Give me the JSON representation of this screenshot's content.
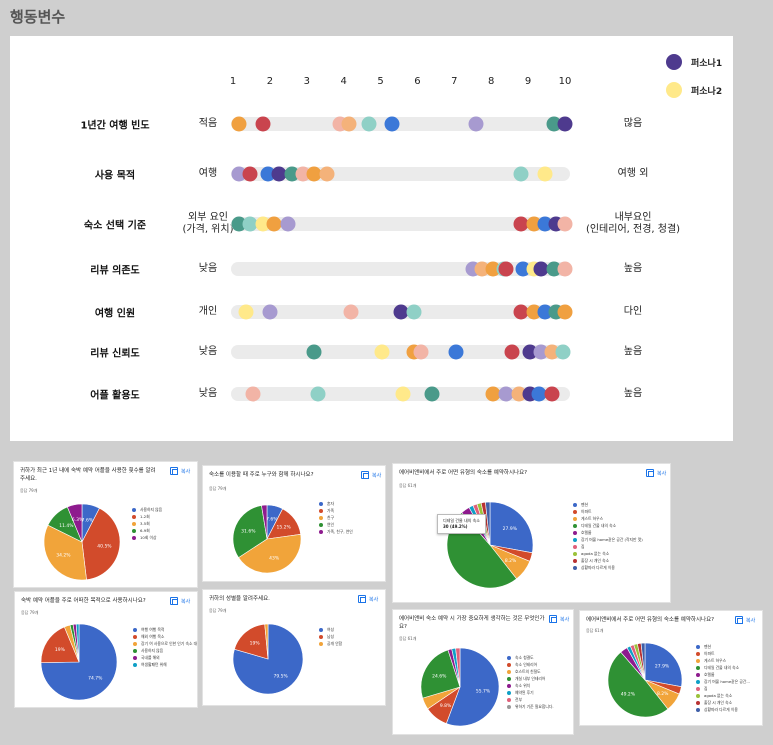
{
  "page_title": "행동변수",
  "legend": [
    {
      "label": "퍼소나1",
      "color": "#4e3a8e"
    },
    {
      "label": "퍼소나2",
      "color": "#ffe98a"
    }
  ],
  "scale": [
    "1",
    "2",
    "3",
    "4",
    "5",
    "6",
    "7",
    "8",
    "9",
    "10"
  ],
  "rows": [
    {
      "label": "1년간 여행 빈도",
      "left": "적음",
      "right": "많음",
      "dots": [
        {
          "v": 1.15,
          "c": "#f0a040"
        },
        {
          "v": 1.8,
          "c": "#c9444e"
        },
        {
          "v": 3.9,
          "c": "#f2b4a6"
        },
        {
          "v": 4.15,
          "c": "#f4b27a"
        },
        {
          "v": 4.7,
          "c": "#8fd0c6"
        },
        {
          "v": 5.3,
          "c": "#3b78d8"
        },
        {
          "v": 7.6,
          "c": "#a79ad0"
        },
        {
          "v": 9.7,
          "c": "#4a9a8a"
        },
        {
          "v": 10,
          "c": "#4e3a8e"
        }
      ]
    },
    {
      "label": "사용 목적",
      "left": "여행",
      "right": "여행 외",
      "dots": [
        {
          "v": 1.15,
          "c": "#a79ad0"
        },
        {
          "v": 1.45,
          "c": "#c9444e"
        },
        {
          "v": 1.95,
          "c": "#3b78d8"
        },
        {
          "v": 2.25,
          "c": "#4e3a8e"
        },
        {
          "v": 2.6,
          "c": "#4a9a8a"
        },
        {
          "v": 2.9,
          "c": "#f2b4a6"
        },
        {
          "v": 3.2,
          "c": "#f0a040"
        },
        {
          "v": 3.55,
          "c": "#f4b27a"
        },
        {
          "v": 8.8,
          "c": "#8fd0c6"
        },
        {
          "v": 9.45,
          "c": "#ffe98a"
        }
      ]
    },
    {
      "label": "숙소 선택 기준",
      "left": "외부 요인\n(가격, 위치)",
      "right": "내부요인\n(인테리어, 전경, 청결)",
      "dots": [
        {
          "v": 1.15,
          "c": "#4a9a8a"
        },
        {
          "v": 1.45,
          "c": "#8fd0c6"
        },
        {
          "v": 1.8,
          "c": "#ffe98a"
        },
        {
          "v": 2.1,
          "c": "#f0a040"
        },
        {
          "v": 2.5,
          "c": "#a79ad0"
        },
        {
          "v": 8.8,
          "c": "#c9444e"
        },
        {
          "v": 9.15,
          "c": "#f0a040"
        },
        {
          "v": 9.45,
          "c": "#3b78d8"
        },
        {
          "v": 9.75,
          "c": "#4e3a8e"
        },
        {
          "v": 10,
          "c": "#f2b4a6"
        }
      ]
    },
    {
      "label": "리뷰 의존도",
      "left": "낮음",
      "right": "높음",
      "dots": [
        {
          "v": 7.5,
          "c": "#a79ad0"
        },
        {
          "v": 7.75,
          "c": "#f4b27a"
        },
        {
          "v": 8.05,
          "c": "#f0a040"
        },
        {
          "v": 8.35,
          "c": "#8fd0c6"
        },
        {
          "v": 8.4,
          "c": "#c9444e"
        },
        {
          "v": 8.85,
          "c": "#3b78d8"
        },
        {
          "v": 9.15,
          "c": "#ffe98a"
        },
        {
          "v": 9.35,
          "c": "#4e3a8e"
        },
        {
          "v": 9.7,
          "c": "#4a9a8a"
        },
        {
          "v": 10,
          "c": "#f2b4a6"
        }
      ]
    },
    {
      "label": "여행 인원",
      "left": "개인",
      "right": "다인",
      "dots": [
        {
          "v": 1.35,
          "c": "#ffe98a"
        },
        {
          "v": 2,
          "c": "#a79ad0"
        },
        {
          "v": 4.2,
          "c": "#f2b4a6"
        },
        {
          "v": 5.55,
          "c": "#4e3a8e"
        },
        {
          "v": 5.9,
          "c": "#8fd0c6"
        },
        {
          "v": 8.8,
          "c": "#c9444e"
        },
        {
          "v": 9.15,
          "c": "#f0a040"
        },
        {
          "v": 9.45,
          "c": "#3b78d8"
        },
        {
          "v": 9.75,
          "c": "#4a9a8a"
        },
        {
          "v": 10,
          "c": "#f0a040"
        }
      ]
    },
    {
      "label": "리뷰 신뢰도",
      "left": "낮음",
      "right": "높음",
      "dots": [
        {
          "v": 3.2,
          "c": "#4a9a8a"
        },
        {
          "v": 5.05,
          "c": "#ffe98a"
        },
        {
          "v": 5.9,
          "c": "#f0a040"
        },
        {
          "v": 6.1,
          "c": "#f2b4a6"
        },
        {
          "v": 7.05,
          "c": "#3b78d8"
        },
        {
          "v": 8.55,
          "c": "#c9444e"
        },
        {
          "v": 9.05,
          "c": "#4e3a8e"
        },
        {
          "v": 9.35,
          "c": "#a79ad0"
        },
        {
          "v": 9.65,
          "c": "#f4b27a"
        },
        {
          "v": 9.95,
          "c": "#8fd0c6"
        }
      ]
    },
    {
      "label": "어플 활용도",
      "left": "낮음",
      "right": "높음",
      "dots": [
        {
          "v": 1.55,
          "c": "#f2b4a6"
        },
        {
          "v": 3.3,
          "c": "#8fd0c6"
        },
        {
          "v": 5.6,
          "c": "#ffe98a"
        },
        {
          "v": 6.4,
          "c": "#4a9a8a"
        },
        {
          "v": 8.05,
          "c": "#f0a040"
        },
        {
          "v": 8.4,
          "c": "#a79ad0"
        },
        {
          "v": 8.75,
          "c": "#f4b27a"
        },
        {
          "v": 9.05,
          "c": "#4e3a8e"
        },
        {
          "v": 9.3,
          "c": "#3b78d8"
        },
        {
          "v": 9.65,
          "c": "#c9444e"
        }
      ]
    }
  ],
  "cards": [
    {
      "question": "귀하가 최근 1년 내에 숙박 예약 어플을 사용한 횟수를 알려주세요.",
      "count": "응답 79개",
      "copy": "복사",
      "slices": [
        {
          "v": 7.6,
          "c": "#3c68c8",
          "label": "7.6%"
        },
        {
          "v": 40.5,
          "c": "#d24b2b",
          "label": "40.5%"
        },
        {
          "v": 34.2,
          "c": "#f1a43a",
          "label": "34.2%"
        },
        {
          "v": 11.4,
          "c": "#2f9134",
          "label": "11.4%"
        },
        {
          "v": 6.3,
          "c": "#8e1b8e",
          "label": "6.3%"
        }
      ],
      "legend": [
        "사용하지 않음",
        "1-2회",
        "3-5회",
        "6-9회",
        "10회 이상"
      ]
    },
    {
      "question": "숙소를 이용할 때 주로 누구와 함께 하시나요?",
      "count": "응답 79개",
      "copy": "복사",
      "slices": [
        {
          "v": 7.6,
          "c": "#3c68c8",
          "label": "7.6%"
        },
        {
          "v": 15.2,
          "c": "#d24b2b",
          "label": "15.2%"
        },
        {
          "v": 43,
          "c": "#f1a43a",
          "label": "43%"
        },
        {
          "v": 31.6,
          "c": "#2f9134",
          "label": "31.6%"
        },
        {
          "v": 2.6,
          "c": "#8e1b8e",
          "label": ""
        }
      ],
      "legend": [
        "혼자",
        "가족",
        "친구",
        "연인",
        "가족, 친구, 연인"
      ]
    },
    {
      "question": "에어비앤비에서 주로 어떤 유형의 숙소를 예약하시나요?",
      "count": "응답 61개",
      "copy": "복사",
      "slices": [
        {
          "v": 27.9,
          "c": "#3c68c8",
          "label": "27.9%"
        },
        {
          "v": 3.3,
          "c": "#d24b2b",
          "label": ""
        },
        {
          "v": 8.2,
          "c": "#f1a43a",
          "label": "8.2%"
        },
        {
          "v": 49.2,
          "c": "#2f9134",
          "label": ""
        },
        {
          "v": 3.3,
          "c": "#8e1b8e",
          "label": ""
        },
        {
          "v": 1.6,
          "c": "#0f9fc6",
          "label": ""
        },
        {
          "v": 1.6,
          "c": "#e0607a",
          "label": ""
        },
        {
          "v": 1.6,
          "c": "#9bc23a",
          "label": ""
        },
        {
          "v": 1.6,
          "c": "#b83232",
          "label": ""
        },
        {
          "v": 1.7,
          "c": "#3f5fa8",
          "label": ""
        }
      ],
      "legend": [
        "펜션",
        "아파트",
        "게스트 하우스",
        "디테일 건물 내의 숙소",
        "호텔룸",
        "장기 머물 home같은 공간 (작지만 멋)",
        "집",
        "agoda 없는 숙소",
        "출장 시 개인 숙소",
        "상황따라 다르게 이용"
      ],
      "tooltip": [
        "디테일 건물 내의 숙소",
        "30 (49.2%)"
      ]
    },
    {
      "question": "숙박 예약 어플을 주로 어떠한 목적으로 사용하시나요?",
      "count": "응답 79개",
      "copy": "복사",
      "slices": [
        {
          "v": 74.7,
          "c": "#3c68c8",
          "label": "74.7%"
        },
        {
          "v": 19,
          "c": "#d24b2b",
          "label": "19%"
        },
        {
          "v": 2.5,
          "c": "#f1a43a",
          "label": ""
        },
        {
          "v": 1.3,
          "c": "#2f9134",
          "label": ""
        },
        {
          "v": 1.3,
          "c": "#8e1b8e",
          "label": ""
        },
        {
          "v": 1.2,
          "c": "#0f9fc6",
          "label": ""
        }
      ],
      "legend": [
        "여행 여행 목적",
        "해외 여행 목소",
        "장기 여 사용으로 인한 인기 숙소 대여",
        "사용하지 않음",
        "국내를 해외",
        "여생활패턴 위해"
      ]
    },
    {
      "question": "귀하의 성별을 알려주세요.",
      "count": "응답 79개",
      "copy": "복사",
      "slices": [
        {
          "v": 79.5,
          "c": "#3c68c8",
          "label": "79.5%"
        },
        {
          "v": 19,
          "c": "#d24b2b",
          "label": "19%"
        },
        {
          "v": 1.5,
          "c": "#f1a43a",
          "label": ""
        }
      ],
      "legend": [
        "여성",
        "남성",
        "공개 안함"
      ]
    },
    {
      "question": "에어비앤비 숙소 예약 시 가장 중요하게 생각하는 것은 무엇인가요?",
      "count": "응답 61개",
      "copy": "복사",
      "slices": [
        {
          "v": 55.7,
          "c": "#3c68c8",
          "label": "55.7%"
        },
        {
          "v": 9.8,
          "c": "#d24b2b",
          "label": "9.8%"
        },
        {
          "v": 4.9,
          "c": "#f1a43a",
          "label": ""
        },
        {
          "v": 24.6,
          "c": "#2f9134",
          "label": "24.6%"
        },
        {
          "v": 1.6,
          "c": "#8e1b8e",
          "label": ""
        },
        {
          "v": 1.6,
          "c": "#0f9fc6",
          "label": ""
        },
        {
          "v": 1.8,
          "c": "#e0607a",
          "label": ""
        }
      ],
      "legend": [
        "숙소 청결도",
        "숙소 인테리어",
        "호스트의 친절도",
        "개실 내부 인테리어",
        "숙소 위치",
        "예약된 후기",
        "전부",
        "위하기 기준 필요합니다."
      ]
    },
    {
      "question": "에어비앤비에서 주로 어떤 유형의 숙소를 예약하시나요?",
      "count": "응답 61개",
      "copy": "복사",
      "slices": [
        {
          "v": 27.9,
          "c": "#3c68c8",
          "label": "27.9%"
        },
        {
          "v": 3.3,
          "c": "#d24b2b",
          "label": ""
        },
        {
          "v": 8.2,
          "c": "#f1a43a",
          "label": "8.2%"
        },
        {
          "v": 49.2,
          "c": "#2f9134",
          "label": "49.2%"
        },
        {
          "v": 3.3,
          "c": "#8e1b8e",
          "label": ""
        },
        {
          "v": 1.6,
          "c": "#0f9fc6",
          "label": ""
        },
        {
          "v": 1.6,
          "c": "#e0607a",
          "label": ""
        },
        {
          "v": 1.6,
          "c": "#9bc23a",
          "label": ""
        },
        {
          "v": 1.6,
          "c": "#b83232",
          "label": ""
        },
        {
          "v": 1.7,
          "c": "#3f5fa8",
          "label": ""
        }
      ],
      "legend": [
        "펜션",
        "아파트",
        "게스트 하우스",
        "디테일 건물 내의 숙소",
        "호텔룸",
        "장기 머물 home같은 공간...",
        "집",
        "agoda 없는 숙소",
        "출장 시 개인 숙소",
        "상황따라 다르게 이용"
      ]
    }
  ]
}
